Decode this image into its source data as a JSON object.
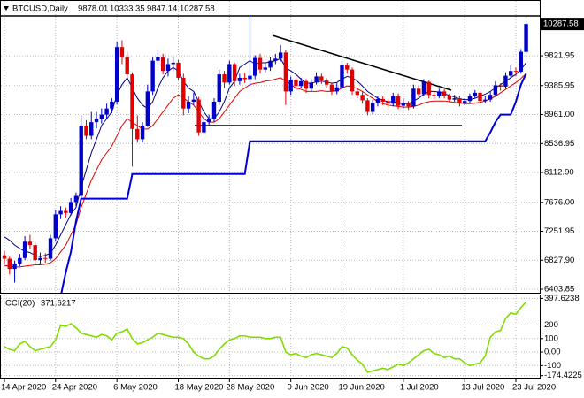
{
  "chart_data": [
    {
      "type": "candlestick",
      "title": "BTCUSD,Daily",
      "categories": [
        "14 Apr 2020",
        null,
        null,
        null,
        null,
        null,
        null,
        null,
        null,
        null,
        "24 Apr 2020",
        null,
        null,
        null,
        null,
        null,
        null,
        null,
        null,
        null,
        null,
        null,
        "6 May 2020",
        null,
        null,
        null,
        null,
        null,
        null,
        null,
        null,
        null,
        null,
        null,
        "18 May 2020",
        null,
        null,
        null,
        null,
        null,
        null,
        null,
        null,
        null,
        "28 May 2020",
        null,
        null,
        null,
        null,
        null,
        null,
        null,
        null,
        null,
        null,
        null,
        "9 Jun 2020",
        null,
        null,
        null,
        null,
        null,
        null,
        null,
        null,
        null,
        "19 Jun 2020",
        null,
        null,
        null,
        null,
        null,
        null,
        null,
        null,
        null,
        null,
        null,
        "1 Jul 2020",
        null,
        null,
        null,
        null,
        null,
        null,
        null,
        null,
        null,
        null,
        null,
        "13 Jul 2020",
        null,
        null,
        null,
        null,
        null,
        null,
        null,
        null,
        null,
        "23 Jul 2020",
        null,
        null
      ],
      "open": [
        6900,
        6850,
        6700,
        6780,
        6860,
        7100,
        7050,
        6830,
        6860,
        6850,
        7150,
        7500,
        7550,
        7520,
        7680,
        7770,
        8800,
        8650,
        8850,
        8900,
        8960,
        9050,
        9150,
        9950,
        9800,
        9550,
        8750,
        8600,
        8800,
        9300,
        9750,
        9800,
        9600,
        9700,
        9720,
        9500,
        9050,
        9150,
        9180,
        8700,
        8850,
        8900,
        9150,
        9550,
        9430,
        9700,
        9450,
        9500,
        9480,
        9530,
        9790,
        9620,
        9650,
        9750,
        9780,
        9870,
        9300,
        9470,
        9380,
        9450,
        9340,
        9430,
        9520,
        9460,
        9400,
        9300,
        9360,
        9680,
        9620,
        9300,
        9250,
        9170,
        9000,
        9130,
        9190,
        9150,
        9120,
        9230,
        9090,
        9130,
        9080,
        9340,
        9260,
        9440,
        9250,
        9230,
        9300,
        9240,
        9180,
        9200,
        9130,
        9160,
        9230,
        9280,
        9160,
        9180,
        9250,
        9390,
        9370,
        9530,
        9600,
        9590,
        9878.01
      ],
      "high": [
        6960,
        6880,
        6820,
        6920,
        7180,
        7200,
        7090,
        6940,
        6930,
        7200,
        7560,
        7620,
        7600,
        7740,
        7820,
        8950,
        8880,
        9000,
        9000,
        9050,
        9120,
        9200,
        10020,
        10050,
        9880,
        9580,
        8950,
        8850,
        9400,
        9800,
        9900,
        9850,
        9780,
        9800,
        9760,
        9560,
        9230,
        9280,
        9220,
        8900,
        8960,
        9200,
        9620,
        9600,
        9750,
        9720,
        9560,
        9570,
        10420,
        9830,
        9850,
        9720,
        9800,
        9850,
        9980,
        9900,
        9520,
        9500,
        9500,
        9480,
        9480,
        9580,
        9560,
        9500,
        9430,
        9420,
        9750,
        9720,
        9650,
        9340,
        9290,
        9200,
        9180,
        9240,
        9230,
        9200,
        9280,
        9270,
        9200,
        9160,
        9400,
        9380,
        9480,
        9460,
        9300,
        9340,
        9330,
        9270,
        9250,
        9230,
        9200,
        9270,
        9320,
        9300,
        9230,
        9300,
        9450,
        9420,
        9580,
        9680,
        9650,
        9920,
        10333.35
      ],
      "low": [
        6780,
        6620,
        6500,
        6740,
        6830,
        6990,
        6760,
        6780,
        6790,
        6820,
        7100,
        7430,
        7450,
        7480,
        7620,
        7730,
        8600,
        8600,
        8760,
        8830,
        8900,
        8980,
        9110,
        9700,
        9500,
        8200,
        8550,
        8550,
        8780,
        9250,
        9680,
        9550,
        9520,
        9600,
        9470,
        8950,
        8980,
        9100,
        8650,
        8680,
        8800,
        8850,
        9100,
        9350,
        9400,
        9380,
        9400,
        9420,
        9380,
        9480,
        9560,
        9580,
        9600,
        9700,
        9740,
        9100,
        9250,
        9320,
        9350,
        9280,
        9300,
        9400,
        9410,
        9350,
        9250,
        9260,
        9330,
        9560,
        9250,
        9200,
        9120,
        8950,
        8960,
        9080,
        9100,
        9070,
        9080,
        9040,
        9050,
        9030,
        9050,
        9220,
        9230,
        9200,
        9190,
        9200,
        9200,
        9140,
        9150,
        9080,
        9100,
        9130,
        9200,
        9120,
        9130,
        9150,
        9220,
        9310,
        9340,
        9500,
        9520,
        9560,
        9847.14
      ],
      "close": [
        6850,
        6700,
        6780,
        6860,
        7100,
        7050,
        6830,
        6860,
        6850,
        7150,
        7500,
        7550,
        7520,
        7680,
        7770,
        8800,
        8650,
        8850,
        8900,
        8960,
        9050,
        9150,
        9950,
        9800,
        9550,
        8750,
        8600,
        8800,
        9300,
        9750,
        9800,
        9600,
        9700,
        9720,
        9500,
        9050,
        9150,
        9180,
        8700,
        8850,
        8900,
        9150,
        9550,
        9430,
        9700,
        9450,
        9500,
        9480,
        9530,
        9790,
        9620,
        9650,
        9750,
        9780,
        9870,
        9300,
        9470,
        9380,
        9450,
        9340,
        9430,
        9520,
        9460,
        9400,
        9300,
        9360,
        9680,
        9620,
        9300,
        9250,
        9170,
        9000,
        9130,
        9190,
        9150,
        9120,
        9230,
        9090,
        9130,
        9080,
        9340,
        9260,
        9440,
        9250,
        9230,
        9300,
        9240,
        9180,
        9200,
        9130,
        9160,
        9230,
        9280,
        9160,
        9180,
        9250,
        9390,
        9370,
        9530,
        9600,
        9590,
        9880,
        10287.58
      ],
      "up_color": "#0000cc",
      "down_color": "#e00000",
      "lines": [
        {
          "color": "#000080",
          "width": 1,
          "values": [
            7170,
            7120,
            7050,
            7000,
            6960,
            6940,
            6900,
            6880,
            6900,
            6930,
            7050,
            7200,
            7350,
            7500,
            7600,
            7900,
            8150,
            8400,
            8600,
            8800,
            8900,
            9000,
            9250,
            9400,
            9500,
            9350,
            9200,
            9100,
            9050,
            9150,
            9350,
            9500,
            9600,
            9650,
            9600,
            9450,
            9350,
            9300,
            9150,
            9000,
            8900,
            8900,
            9000,
            9150,
            9350,
            9450,
            9650,
            9700,
            9750,
            9700,
            9720,
            9720,
            9730,
            9750,
            9780,
            9650,
            9600,
            9550,
            9480,
            9420,
            9420,
            9440,
            9450,
            9440,
            9420,
            9430,
            9480,
            9520,
            9500,
            9450,
            9380,
            9300,
            9250,
            9200,
            9170,
            9150,
            9150,
            9130,
            9120,
            9120,
            9160,
            9200,
            9260,
            9300,
            9300,
            9290,
            9270,
            9240,
            9220,
            9190,
            9180,
            9180,
            9200,
            9230,
            9260,
            9300,
            9350,
            9400,
            9450,
            9500,
            9550,
            9620,
            9720
          ]
        },
        {
          "color": "#e00000",
          "width": 1,
          "values": [
            6750,
            6740,
            6730,
            6730,
            6740,
            6750,
            6760,
            6760,
            6770,
            6790,
            6850,
            6950,
            7050,
            7200,
            7350,
            7600,
            7800,
            8000,
            8150,
            8300,
            8400,
            8500,
            8650,
            8800,
            8900,
            8850,
            8800,
            8750,
            8750,
            8800,
            8900,
            9000,
            9100,
            9200,
            9250,
            9200,
            9150,
            9100,
            9000,
            8900,
            8850,
            8850,
            8900,
            9000,
            9100,
            9200,
            9300,
            9350,
            9400,
            9420,
            9430,
            9450,
            9460,
            9480,
            9500,
            9450,
            9400,
            9350,
            9330,
            9300,
            9300,
            9300,
            9310,
            9300,
            9300,
            9310,
            9350,
            9380,
            9370,
            9340,
            9300,
            9250,
            9200,
            9150,
            9120,
            9100,
            9090,
            9080,
            9070,
            9070,
            9080,
            9100,
            9130,
            9150,
            9160,
            9160,
            9160,
            9150,
            9140,
            9130,
            9120,
            9120,
            9130,
            9140,
            9160,
            9190,
            9230,
            9280,
            9330,
            9380,
            9430,
            9490,
            9560
          ]
        },
        {
          "color": "#0000dd",
          "width": 2,
          "values": [
            null,
            null,
            null,
            null,
            null,
            null,
            null,
            null,
            null,
            null,
            null,
            6300,
            6650,
            6950,
            7400,
            7730,
            7730,
            7730,
            7730,
            7730,
            7730,
            7730,
            7730,
            7730,
            7730,
            8090,
            8090,
            8090,
            8090,
            8090,
            8090,
            8090,
            8090,
            8090,
            8090,
            8090,
            8090,
            8090,
            8090,
            8090,
            8090,
            8090,
            8090,
            8090,
            8090,
            8090,
            8090,
            8090,
            8570,
            8570,
            8570,
            8570,
            8570,
            8570,
            8570,
            8570,
            8570,
            8570,
            8570,
            8570,
            8570,
            8570,
            8570,
            8570,
            8570,
            8570,
            8570,
            8570,
            8570,
            8570,
            8570,
            8570,
            8570,
            8570,
            8570,
            8570,
            8570,
            8570,
            8570,
            8570,
            8570,
            8570,
            8570,
            8570,
            8570,
            8570,
            8570,
            8570,
            8570,
            8570,
            8570,
            8570,
            8570,
            8570,
            8570,
            8700,
            8850,
            8960,
            8960,
            8960,
            9150,
            9400,
            9560
          ]
        }
      ],
      "ylim": [
        6365,
        10600
      ],
      "yticks": [
        9821.95,
        9385.95,
        {
          "value": 8961,
          "label": "8961.00"
        },
        8536.95,
        {
          "value": 8112.9,
          "label": "8112.90"
        },
        {
          "value": 7676,
          "label": "7676.00"
        },
        7251.95,
        {
          "value": 6827.9,
          "label": "6827.90"
        },
        6403.85
      ],
      "grid": true
    },
    {
      "type": "line",
      "title": "CCI(20)",
      "color": "#7fdc00",
      "values": [
        40,
        20,
        10,
        60,
        80,
        40,
        10,
        20,
        30,
        40,
        90,
        200,
        190,
        210,
        180,
        140,
        130,
        120,
        110,
        130,
        120,
        90,
        140,
        150,
        170,
        100,
        60,
        70,
        90,
        110,
        140,
        130,
        120,
        110,
        110,
        100,
        60,
        0,
        -30,
        -50,
        -50,
        -30,
        20,
        60,
        90,
        100,
        120,
        120,
        110,
        110,
        110,
        100,
        100,
        110,
        110,
        0,
        -20,
        -10,
        -30,
        -40,
        -20,
        -10,
        -20,
        -30,
        -40,
        -10,
        40,
        30,
        -20,
        -60,
        -90,
        -150,
        -140,
        -130,
        -120,
        -130,
        -110,
        -90,
        -100,
        -80,
        -50,
        -20,
        10,
        20,
        -10,
        -20,
        -40,
        -30,
        -50,
        -50,
        -80,
        -100,
        -90,
        -80,
        -30,
        110,
        150,
        160,
        250,
        290,
        280,
        330,
        371.6217
      ],
      "ylim": [
        -190,
        420
      ],
      "yticks": [
        397.6238,
        200,
        100,
        {
          "value": 0,
          "label": "0.00"
        },
        -100,
        -174.4225
      ],
      "grid": true
    }
  ]
}
